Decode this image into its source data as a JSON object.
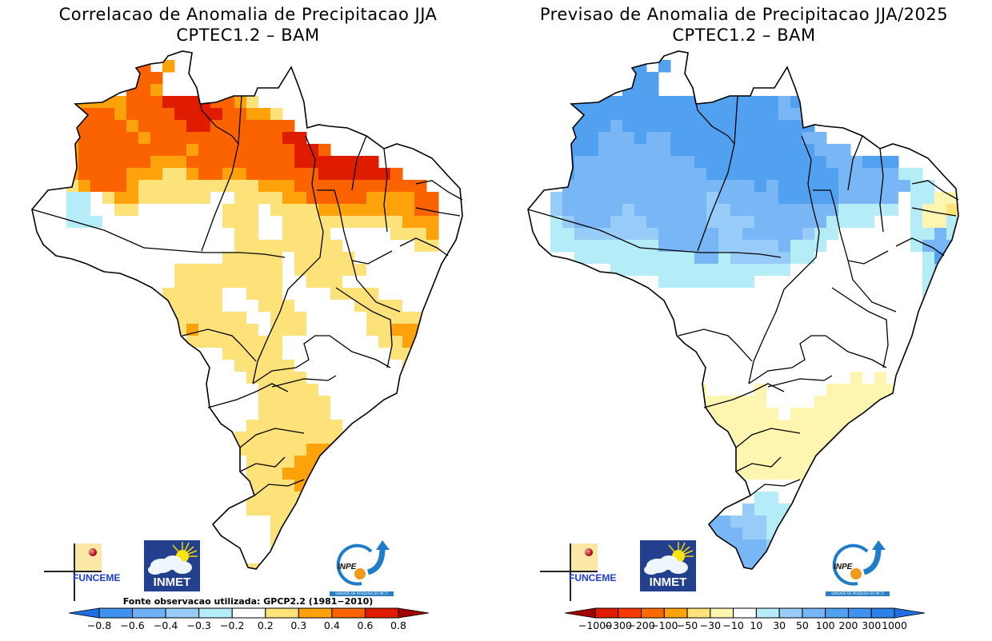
{
  "panels": [
    {
      "id": "correlation",
      "title_line1": "Correlacao de Anomalia de Precipitacao JJA",
      "title_line2": "CPTEC1.2 – BAM",
      "source_note": "Fonte observacao utilizada: GPCP2.2 (1981−2010)",
      "colorbar": {
        "labels": [
          "−0.8",
          "−0.6",
          "−0.4",
          "−0.3",
          "−0.2",
          "0.2",
          "0.3",
          "0.4",
          "0.6",
          "0.8"
        ],
        "low_arrow_color": "#1f6fe0",
        "colors": [
          "#3f93ee",
          "#70b0f4",
          "#98ccf8",
          "#b4ecf8",
          "#ffffff",
          "#fde27a",
          "#fda20a",
          "#fb6200",
          "#e01c00"
        ],
        "high_arrow_color": "#a00000"
      },
      "field_color_keys": {
        "r": "#e01c00",
        "o": "#fb6200",
        "a": "#fda20a",
        "y": "#fde27a",
        "c": "#b4ecf8",
        "w": "#ffffff"
      },
      "field_rows": [
        "....................................",
        "........oo.a........................",
        "........ooo.........................",
        "...aa...ooa.....a...................",
        "...aaaaaooorrrrooayw................",
        "...aoooaoooorrrrooaay...............",
        "...aooooaoooorrooooooo..............",
        "...aoooooaooooooooooorr.............",
        "...aoooooooooaoooooooorro...........",
        "...aooooooaaaooooooooorrrrrrr.......",
        "...aooooaaayyaooaaoooooorrrrrro.....",
        "...yaoooayyyyyyyyyyaaaooooooooooo...",
        "..wccwyaayyyyyywwyyyyaaoooooaaaaoo..",
        "..wccwwyywwwwwwwyyywyyyyaaaaaaaaoo..",
        "..wcccwwwwwwwwwwyyywwyyyyyyyyyyaaa..",
        "..wwwwwwwwwwwwwwwyywwyyyywwwwwyyya..",
        "..wwwwwwwwwwwwwwwyyyyyyyyywwwwwwyy..",
        "....wwwwwwwwwwwwyyyyywyyyyywwwwwww..",
        "....wwwwwwwwyyyyyyyyywyyyyyywwwwwww.",
        ".......wwwwwyyyyyyyyywwyyywwwwwwww..",
        ".......wwwwyyyyywwyyywwwwyyyywwwwww.",
        "..........yyyyyywwwyyywwwwwyyyywwwww",
        "..........wwyyyyyywwyyywwwwwyyyyyyww",
        "..........wwyayyyyywyyywwwwwyyaaaayw",
        "..........wwwyyyyyyyywwwwwwwwyyaaaaw",
        "...........wwwwwyyyyywwwwwwwwwyyaayw",
        "............wwwwwyyyyywwwwwwwwwyyyww",
        "............wwwwwwyyyyywwwwwwwwwwyw.",
        ".............wwwwwwyyyyywwwwwwwwyyw.",
        ".............wwwwwwyyyyyywwwwwwwwww.",
        "..............wwwwwyyyyyywwwwwww....",
        "..............wwwwyyyyyyyywwwwww....",
        "...............wwyyyyyyyyyywwww.....",
        "...............wwyyyyyyaaaawww......",
        "...............wwwyyyyaaaaaw........",
        "................wwyyyaaaaoo.........",
        "................wwyyyyaaaoo.........",
        "................wwyyyyyaooo.........",
        "...............wwwyyyyyaoo..........",
        "..............wwwwwwyyyy............",
        "..............wwwwwwyyy.............",
        "...............wwwwwyy..............",
        "................wwwwyy..............",
        "..................yay..............."
      ]
    },
    {
      "id": "forecast",
      "title_line1": "Previsao de Anomalia de Precipitacao JJA/2025",
      "title_line2": "CPTEC1.2 – BAM",
      "colorbar": {
        "labels": [
          "−1000",
          "−300",
          "−200",
          "−100",
          "−50",
          "−30",
          "−10",
          "10",
          "30",
          "50",
          "100",
          "200",
          "300",
          "1000"
        ],
        "low_arrow_color": "#a00000",
        "colors": [
          "#e01c00",
          "#fb3a00",
          "#fb6a00",
          "#fda20a",
          "#fde27a",
          "#fef6b0",
          "#ffffff",
          "#b4ecf8",
          "#98ccf8",
          "#78b6f5",
          "#52a0f0",
          "#3f93ee",
          "#2b82e8"
        ],
        "high_arrow_color": "#1f6fe0"
      },
      "field_color_keys": {
        "b": "#52a0f0",
        "m": "#78b6f5",
        "l": "#98ccf8",
        "c": "#b4ecf8",
        "w": "#ffffff",
        "p": "#fef6b0",
        "y": "#fde27a"
      },
      "field_rows": [
        "....................................",
        "........bb.b..............m.........",
        "........bbb..............mb.........",
        "...bb...bbb.....b.......bbb.........",
        "...bbbbbbbbbbbbbbbbbbmbb............",
        "...bbbbbbbbbbbbbbbbbbmm.............",
        "...bbbbmbbbbbbbbbbbbbbbb............",
        "...bbbmmmbmmbbbbbbbbbbbmm...........",
        "...bbbmmmmmmbbbbbbbbbbbbmmm.........",
        "...bmmmmmmmmmmbbbbbbbbbbbmmmbbb.....",
        "...bmmmmmmmmmmmbbbbbbbbbbbmmmmmcc...",
        "...mmmmmmmmmmmmmmmmbmbbbbbmmmmmmcc..",
        "..lmmmmmmmmmmmmlmmmmmbbbbbmmmmmwccpp",
        "..lmmmmmlmmmmmmllmmmmmmmmmcccccwcppy",
        "..clmmmlllmmmmmllllmmmmmmccccwwwcppc",
        "..cclllllllmmmmmllmmmmmlccwwwwwwccmc",
        "..cccccccccmmmmmlllllmcccwwwwwwwcmmm",
        "....ccccccccccmmclllllccwwwwwwwwwcbb",
        "....wwwcccccccccccccccwwwwwwwwwwwclb",
        ".......wwwwccccccccwwwwwwwwwwwwwwclb.",
        ".......wwwwwwwwwwwwwwwwwwwwwwwwwwcmb",
        "..........wwwwwwwwwwwwwwwwwwwwwwwcmb",
        "..........wwwwwwwwwwwwwwwwwwwwwwwlmb",
        "..........wwwwwwwwwwwwwwwwwwwwwwwlmb",
        "..........wwwwwwwwwwwwwwwwwwwwwwwlmb",
        "...........wwwwwwwwwwwwwwwwwwwwwclmb",
        "............pwwwwwwwwwwwwwwwwwwwcmm",
        "............ppwwwwwwwwwwwwwpwpwwcmm.",
        ".............ppwwwwpwwwwwpppppppwcm.",
        ".............pppppppwwwwppppppppwcc.",
        "..............pppppppwpppppppppww...",
        "..............pppppppppppppppppp....",
        "...............ppppppppppppppppp....",
        "...............ppppppppppypppp......",
        "...............pppppppppyppw........",
        "................wppppppppp..........",
        "................wwwwwwwwww..........",
        "................wwwccwwwww..........",
        "...............wwwlcccwww...........",
        "..............mmmlllccc.............",
        "..............mmmmllcc..............",
        "...............mmmmmlc..............",
        "................mmmmmm..............",
        "..................mmm..............."
      ]
    }
  ],
  "logos": {
    "funceme": "FUNCEME",
    "inmet": "INMET",
    "inpe": "INPE",
    "inpe_tagline": "UNIDADE DE PESQUISA DO MCTI"
  }
}
